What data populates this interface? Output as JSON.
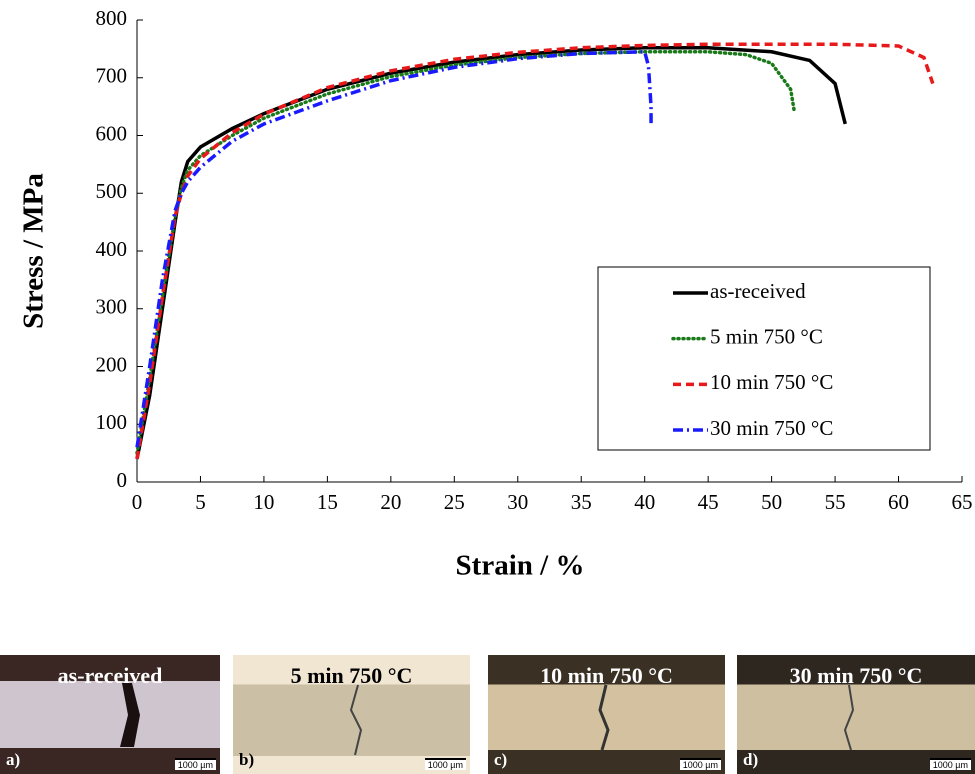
{
  "chart_data": {
    "type": "line",
    "x_label": "Strain / %",
    "y_label": "Stress / MPa",
    "xlim": [
      0,
      65
    ],
    "ylim": [
      0,
      800
    ],
    "xticks": [
      0,
      5,
      10,
      15,
      20,
      25,
      30,
      35,
      40,
      45,
      50,
      55,
      60,
      65
    ],
    "yticks": [
      0,
      100,
      200,
      300,
      400,
      500,
      600,
      700,
      800
    ],
    "legend": "lower right",
    "series": [
      {
        "name": "as-received",
        "color": "#000000",
        "style": "solid",
        "x": [
          0,
          1,
          2,
          3,
          3.5,
          4,
          5,
          7.5,
          10,
          15,
          20,
          25,
          30,
          35,
          40,
          45,
          50,
          53,
          55,
          55.8
        ],
        "values": [
          40,
          150,
          300,
          450,
          520,
          555,
          580,
          612,
          638,
          680,
          708,
          727,
          740,
          748,
          752,
          752,
          745,
          730,
          690,
          620
        ]
      },
      {
        "name": "5 min 750 °C",
        "color": "#1a7a1a",
        "style": "dotted",
        "x": [
          0,
          1,
          2,
          3,
          3.5,
          4,
          5,
          7.5,
          10,
          15,
          20,
          25,
          30,
          35,
          40,
          45,
          48,
          50,
          51.5,
          51.8
        ],
        "values": [
          50,
          180,
          320,
          460,
          510,
          540,
          565,
          600,
          630,
          672,
          702,
          722,
          735,
          742,
          745,
          745,
          740,
          725,
          680,
          640
        ]
      },
      {
        "name": "10 min 750 °C",
        "color": "#e8191a",
        "style": "dashed",
        "x": [
          0,
          1,
          2,
          3,
          3.5,
          4,
          5,
          7.5,
          10,
          15,
          20,
          25,
          30,
          35,
          40,
          45,
          50,
          55,
          60,
          62,
          62.7
        ],
        "values": [
          40,
          170,
          320,
          460,
          500,
          530,
          560,
          605,
          637,
          683,
          712,
          732,
          744,
          752,
          756,
          758,
          758,
          758,
          755,
          735,
          690
        ]
      },
      {
        "name": "30 min 750 °C",
        "color": "#1a1aff",
        "style": "dashdot",
        "x": [
          0,
          1,
          2,
          3,
          3.5,
          4,
          5,
          7.5,
          10,
          15,
          20,
          25,
          30,
          35,
          40,
          40.3,
          40.5,
          40.5
        ],
        "values": [
          60,
          200,
          350,
          470,
          500,
          520,
          545,
          590,
          620,
          660,
          695,
          718,
          733,
          742,
          745,
          720,
          650,
          620
        ]
      }
    ]
  },
  "panels": [
    {
      "title": "as-received",
      "letter": "a)",
      "scale": "1000 µm"
    },
    {
      "title": "5 min 750 °C",
      "letter": "b)",
      "scale": "1000 µm"
    },
    {
      "title": "10 min 750 °C",
      "letter": "c)",
      "scale": "1000 µm"
    },
    {
      "title": "30 min 750 °C",
      "letter": "d)",
      "scale": "1000 µm"
    }
  ]
}
